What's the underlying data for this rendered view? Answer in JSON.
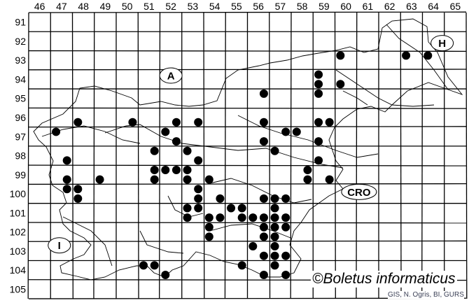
{
  "map": {
    "columns": [
      "46",
      "47",
      "48",
      "49",
      "50",
      "51",
      "52",
      "53",
      "54",
      "55",
      "56",
      "57",
      "58",
      "59",
      "60",
      "61",
      "62",
      "63",
      "64",
      "65"
    ],
    "rows": [
      "91",
      "92",
      "93",
      "94",
      "95",
      "96",
      "97",
      "98",
      "99",
      "100",
      "101",
      "102",
      "103",
      "104",
      "105"
    ],
    "country_labels": [
      {
        "id": "austria",
        "text": "A",
        "col": 52.5,
        "row": 94.3
      },
      {
        "id": "hungary",
        "text": "H",
        "col": 64.9,
        "row": 92.6
      },
      {
        "id": "croatia",
        "text": "CRO",
        "col": 61.1,
        "row": 100.4
      },
      {
        "id": "italy",
        "text": "I",
        "col": 47.4,
        "row": 103.2
      }
    ],
    "dot_color": "#000000",
    "records": [
      [
        60.25,
        93.25
      ],
      [
        63.25,
        93.25
      ],
      [
        64.25,
        93.25
      ],
      [
        59.25,
        94.25
      ],
      [
        59.25,
        94.75
      ],
      [
        60.25,
        94.75
      ],
      [
        59.25,
        95.25
      ],
      [
        56.75,
        95.25
      ],
      [
        48.25,
        96.75
      ],
      [
        50.75,
        96.75
      ],
      [
        52.75,
        96.75
      ],
      [
        53.75,
        96.75
      ],
      [
        56.75,
        96.75
      ],
      [
        59.25,
        96.75
      ],
      [
        59.75,
        96.75
      ],
      [
        47.25,
        97.25
      ],
      [
        52.25,
        97.25
      ],
      [
        57.75,
        97.25
      ],
      [
        58.25,
        97.25
      ],
      [
        52.75,
        97.75
      ],
      [
        56.75,
        97.75
      ],
      [
        59.25,
        97.75
      ],
      [
        51.75,
        98.25
      ],
      [
        53.25,
        98.25
      ],
      [
        57.25,
        98.25
      ],
      [
        47.75,
        98.75
      ],
      [
        53.75,
        98.75
      ],
      [
        59.25,
        98.75
      ],
      [
        51.75,
        99.25
      ],
      [
        52.25,
        99.25
      ],
      [
        52.75,
        99.25
      ],
      [
        53.25,
        99.25
      ],
      [
        58.75,
        99.25
      ],
      [
        47.75,
        99.75
      ],
      [
        49.25,
        99.75
      ],
      [
        51.75,
        99.75
      ],
      [
        53.25,
        99.75
      ],
      [
        54.25,
        99.75
      ],
      [
        58.75,
        99.75
      ],
      [
        59.75,
        99.75
      ],
      [
        47.75,
        100.25
      ],
      [
        48.25,
        100.25
      ],
      [
        53.75,
        100.25
      ],
      [
        48.25,
        100.75
      ],
      [
        53.75,
        100.75
      ],
      [
        54.75,
        100.75
      ],
      [
        56.75,
        100.75
      ],
      [
        57.25,
        100.75
      ],
      [
        57.75,
        100.75
      ],
      [
        53.25,
        101.25
      ],
      [
        53.75,
        101.25
      ],
      [
        55.25,
        101.25
      ],
      [
        55.75,
        101.25
      ],
      [
        57.25,
        101.25
      ],
      [
        53.25,
        101.75
      ],
      [
        54.25,
        101.75
      ],
      [
        54.75,
        101.75
      ],
      [
        55.75,
        101.75
      ],
      [
        56.25,
        101.75
      ],
      [
        56.75,
        101.75
      ],
      [
        57.25,
        101.75
      ],
      [
        57.75,
        101.75
      ],
      [
        54.25,
        102.25
      ],
      [
        56.75,
        102.25
      ],
      [
        57.25,
        102.25
      ],
      [
        57.75,
        102.25
      ],
      [
        54.25,
        102.75
      ],
      [
        56.75,
        102.75
      ],
      [
        57.25,
        102.75
      ],
      [
        56.25,
        103.25
      ],
      [
        57.25,
        103.25
      ],
      [
        56.75,
        103.75
      ],
      [
        57.25,
        103.75
      ],
      [
        57.75,
        103.75
      ],
      [
        51.25,
        104.25
      ],
      [
        51.75,
        104.25
      ],
      [
        55.75,
        104.25
      ],
      [
        57.25,
        104.25
      ],
      [
        52.25,
        104.75
      ],
      [
        56.75,
        104.75
      ],
      [
        57.75,
        104.75
      ]
    ]
  },
  "copyright": "©Boletus informaticus",
  "credit": "GIS, N. Ogris, BI, GURS"
}
